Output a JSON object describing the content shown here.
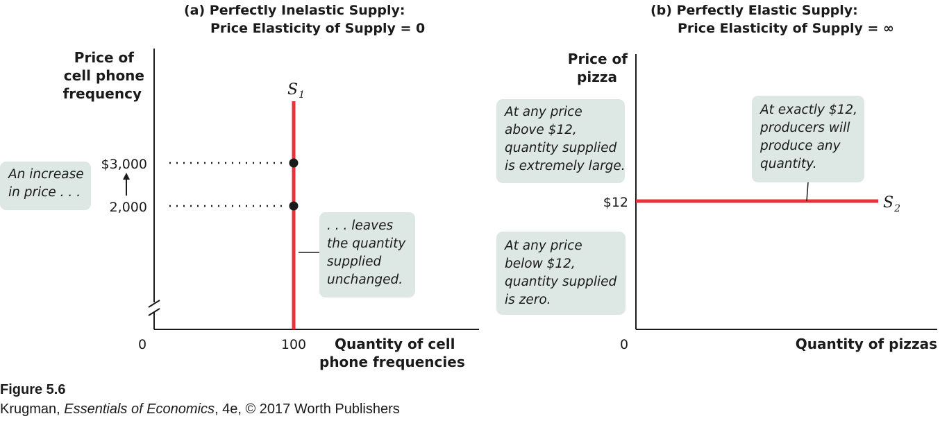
{
  "chart_data": [
    {
      "type": "line",
      "title": "(a) Perfectly Inelastic Supply:",
      "subtitle": "Price Elasticity of Supply = 0",
      "ylabel": [
        "Price of",
        "cell phone",
        "frequency"
      ],
      "xlabel": [
        "Quantity of cell",
        "phone frequencies"
      ],
      "origin_label": "0",
      "x_ticks": [
        {
          "value": 100,
          "label": "100"
        }
      ],
      "y_ticks": [
        {
          "value": 3000,
          "label": "$3,000"
        },
        {
          "value": 2000,
          "label": "2,000"
        }
      ],
      "series": [
        {
          "name": "S",
          "name_sub": "1",
          "x": [
            100,
            100
          ],
          "y": [
            4000,
            0
          ],
          "color": "#e8313a"
        }
      ],
      "points": [
        {
          "x": 100,
          "y": 3000
        },
        {
          "x": 100,
          "y": 2000
        }
      ],
      "axis_break": true,
      "grid": false,
      "annotations": {
        "left": [
          "An increase",
          "in price . . ."
        ],
        "right": [
          ". . . leaves",
          "the quantity",
          "supplied",
          "unchanged."
        ]
      }
    },
    {
      "type": "line",
      "title": "(b) Perfectly Elastic Supply:",
      "subtitle": "Price Elasticity of Supply = ∞",
      "ylabel": [
        "Price of",
        "pizza"
      ],
      "xlabel": [
        "Quantity of pizzas"
      ],
      "origin_label": "0",
      "y_ticks": [
        {
          "value": 12,
          "label": "$12"
        }
      ],
      "series": [
        {
          "name": "S",
          "name_sub": "2",
          "x": [
            0,
            1
          ],
          "y": [
            12,
            12
          ],
          "color": "#e8313a"
        }
      ],
      "grid": false,
      "annotations": {
        "above": [
          "At any price",
          "above $12,",
          "quantity supplied",
          "is extremely large."
        ],
        "below": [
          "At any price",
          "below $12,",
          "quantity supplied",
          "is zero."
        ],
        "exact": [
          "At exactly $12,",
          "producers will",
          "produce any",
          "quantity."
        ]
      }
    }
  ],
  "caption": {
    "figure": "Figure 5.6",
    "credit_author": "Krugman, ",
    "credit_book": "Essentials of Economics",
    "credit_rest": ", 4e, © 2017 Worth Publishers"
  },
  "colors": {
    "supply": "#e8313a",
    "box": "#dde7e3",
    "axis": "#1a1a1a"
  }
}
